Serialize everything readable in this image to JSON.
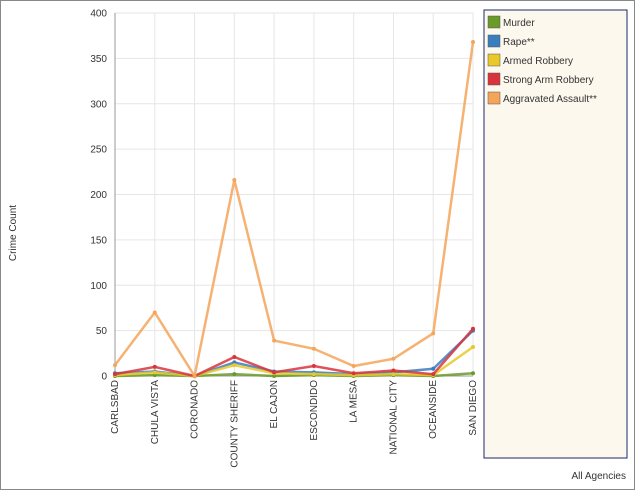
{
  "chart_data": {
    "type": "line",
    "y_label": "Crime Count",
    "x_label": "All Agencies",
    "categories": [
      "CARLSBAD",
      "CHULA VISTA",
      "CORONADO",
      "COUNTY SHERIFF",
      "EL CAJON",
      "ESCONDIDO",
      "LA MESA",
      "NATIONAL CITY",
      "OCEANSIDE",
      "SAN DIEGO"
    ],
    "series": [
      {
        "name": "Murder",
        "color": "#6a9a2a",
        "values": [
          0,
          1,
          0,
          2,
          0,
          1,
          0,
          1,
          0,
          3
        ]
      },
      {
        "name": "Rape**",
        "color": "#3a7ebf",
        "values": [
          3,
          5,
          0,
          15,
          5,
          4,
          2,
          4,
          8,
          50
        ]
      },
      {
        "name": "Armed Robbery",
        "color": "#e8c82a",
        "values": [
          1,
          4,
          0,
          12,
          3,
          2,
          1,
          2,
          1,
          32
        ]
      },
      {
        "name": "Strong Arm Robbery",
        "color": "#d8343b",
        "values": [
          2,
          10,
          0,
          21,
          4,
          11,
          3,
          6,
          2,
          52
        ]
      },
      {
        "name": "Aggravated Assault**",
        "color": "#f5a55a",
        "values": [
          12,
          70,
          0,
          216,
          39,
          30,
          11,
          19,
          47,
          368
        ]
      }
    ],
    "ylim": [
      0,
      400
    ],
    "yticks": [
      0,
      50,
      100,
      150,
      200,
      250,
      300,
      350,
      400
    ],
    "grid": true
  }
}
